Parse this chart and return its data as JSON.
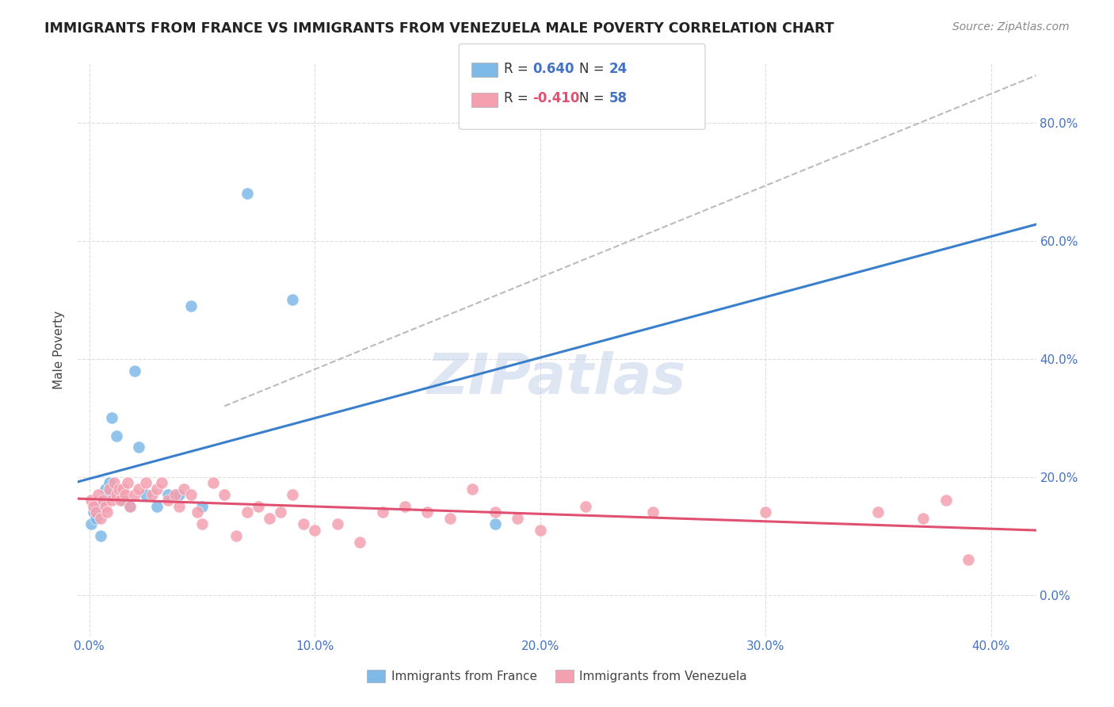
{
  "title": "IMMIGRANTS FROM FRANCE VS IMMIGRANTS FROM VENEZUELA MALE POVERTY CORRELATION CHART",
  "source": "Source: ZipAtlas.com",
  "ylabel": "Male Poverty",
  "france_color": "#7EB9E8",
  "venezuela_color": "#F4A0B0",
  "france_line_color": "#3A7FCC",
  "venezuela_line_color": "#E05070",
  "diagonal_color": "#BBBBBB",
  "france_R": 0.64,
  "france_N": 24,
  "venezuela_R": -0.41,
  "venezuela_N": 58,
  "watermark": "ZIPatlas",
  "france_x": [
    0.001,
    0.002,
    0.003,
    0.004,
    0.005,
    0.006,
    0.007,
    0.008,
    0.009,
    0.01,
    0.012,
    0.015,
    0.018,
    0.02,
    0.022,
    0.025,
    0.03,
    0.035,
    0.04,
    0.045,
    0.05,
    0.07,
    0.09,
    0.18
  ],
  "france_y": [
    0.12,
    0.14,
    0.13,
    0.15,
    0.1,
    0.16,
    0.18,
    0.17,
    0.19,
    0.3,
    0.27,
    0.16,
    0.15,
    0.38,
    0.25,
    0.17,
    0.15,
    0.17,
    0.17,
    0.49,
    0.15,
    0.68,
    0.5,
    0.12
  ],
  "venezuela_x": [
    0.001,
    0.002,
    0.003,
    0.004,
    0.005,
    0.006,
    0.007,
    0.008,
    0.009,
    0.01,
    0.011,
    0.012,
    0.013,
    0.014,
    0.015,
    0.016,
    0.017,
    0.018,
    0.02,
    0.022,
    0.025,
    0.028,
    0.03,
    0.032,
    0.035,
    0.038,
    0.04,
    0.042,
    0.045,
    0.048,
    0.05,
    0.055,
    0.06,
    0.065,
    0.07,
    0.075,
    0.08,
    0.085,
    0.09,
    0.095,
    0.1,
    0.11,
    0.12,
    0.13,
    0.14,
    0.15,
    0.16,
    0.17,
    0.18,
    0.19,
    0.2,
    0.22,
    0.25,
    0.3,
    0.35,
    0.37,
    0.38,
    0.39
  ],
  "venezuela_y": [
    0.16,
    0.15,
    0.14,
    0.17,
    0.13,
    0.16,
    0.15,
    0.14,
    0.18,
    0.16,
    0.19,
    0.17,
    0.18,
    0.16,
    0.18,
    0.17,
    0.19,
    0.15,
    0.17,
    0.18,
    0.19,
    0.17,
    0.18,
    0.19,
    0.16,
    0.17,
    0.15,
    0.18,
    0.17,
    0.14,
    0.12,
    0.19,
    0.17,
    0.1,
    0.14,
    0.15,
    0.13,
    0.14,
    0.17,
    0.12,
    0.11,
    0.12,
    0.09,
    0.14,
    0.15,
    0.14,
    0.13,
    0.18,
    0.14,
    0.13,
    0.11,
    0.15,
    0.14,
    0.14,
    0.14,
    0.13,
    0.16,
    0.06
  ],
  "xlim": [
    -0.005,
    0.42
  ],
  "ylim": [
    -0.07,
    0.9
  ]
}
